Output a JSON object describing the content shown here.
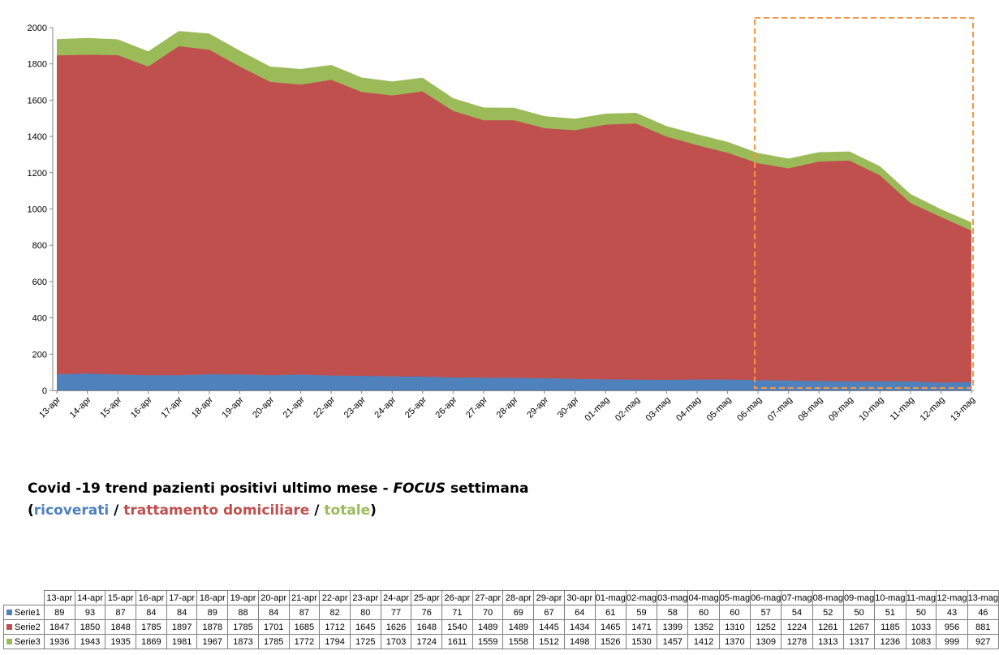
{
  "chart_data": {
    "type": "area",
    "stacked": true,
    "categories": [
      "13-apr",
      "14-apr",
      "15-apr",
      "16-apr",
      "17-apr",
      "18-apr",
      "19-apr",
      "20-apr",
      "21-apr",
      "22-apr",
      "23-apr",
      "24-apr",
      "25-apr",
      "26-apr",
      "27-apr",
      "28-apr",
      "29-apr",
      "30-apr",
      "01-mag",
      "02-mag",
      "03-mag",
      "04-mag",
      "05-mag",
      "06-mag",
      "07-mag",
      "08-mag",
      "09-mag",
      "10-mag",
      "11-mag",
      "12-mag",
      "13-mag"
    ],
    "series": [
      {
        "name": "Serie1",
        "color": "#4f81bd",
        "values": [
          89,
          93,
          87,
          84,
          84,
          89,
          88,
          84,
          87,
          82,
          80,
          77,
          76,
          71,
          70,
          69,
          67,
          64,
          61,
          59,
          58,
          60,
          60,
          57,
          54,
          52,
          50,
          51,
          50,
          43,
          46
        ]
      },
      {
        "name": "Serie2",
        "color": "#c0504d",
        "values": [
          1847,
          1850,
          1848,
          1785,
          1897,
          1878,
          1785,
          1701,
          1685,
          1712,
          1645,
          1626,
          1648,
          1540,
          1489,
          1489,
          1445,
          1434,
          1465,
          1471,
          1399,
          1352,
          1310,
          1252,
          1224,
          1261,
          1267,
          1185,
          1033,
          956,
          881
        ]
      },
      {
        "name": "Serie3",
        "color": "#9bbb59",
        "values": [
          1936,
          1943,
          1935,
          1869,
          1981,
          1967,
          1873,
          1785,
          1772,
          1794,
          1725,
          1703,
          1724,
          1611,
          1559,
          1558,
          1512,
          1498,
          1526,
          1530,
          1457,
          1412,
          1370,
          1309,
          1278,
          1313,
          1317,
          1236,
          1083,
          999,
          927
        ]
      }
    ],
    "yticks": [
      "0",
      "200",
      "400",
      "600",
      "800",
      "1000",
      "1200",
      "1400",
      "1600",
      "1800",
      "2000"
    ],
    "ylim": [
      0,
      2000
    ],
    "focus_range": [
      "06-mag",
      "13-mag"
    ],
    "focus_color": "#f79646",
    "grid": false,
    "title_parts": {
      "prefix": "Covid -19 trend pazienti positivi ultimo mese - ",
      "emphasis": "FOCUS",
      "suffix": " settimana"
    },
    "subtitle_parts": {
      "open": "(",
      "s1": "ricoverati",
      "sep1": " / ",
      "s2": "trattamento domiciliare",
      "sep2": " / ",
      "s3": "totale",
      "close": ")"
    }
  }
}
